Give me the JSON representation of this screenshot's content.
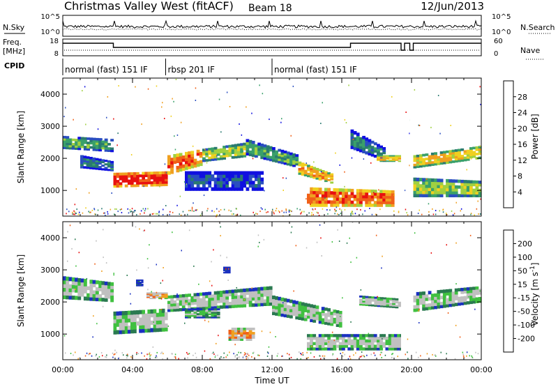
{
  "header": {
    "station": "Christmas Valley West (fitACF)",
    "beam": "Beam 18",
    "date": "12/Jun/2013"
  },
  "top_panels": {
    "nsky_label": "N.Sky",
    "nsky_ticks": [
      "10^5",
      "10^0"
    ],
    "nsearch_label": "N.Search",
    "nsearch_ticks": [
      "10^5",
      "10^0"
    ],
    "freq_label_1": "Freq.",
    "freq_label_2": "[MHz]",
    "freq_ticks": [
      "18",
      "8"
    ],
    "nave_label": "Nave",
    "nave_ticks": [
      "60",
      "0"
    ],
    "cpid_label": "CPID"
  },
  "cpid_segments": [
    {
      "label": "normal (fast) 151 IF",
      "start_hr": 0,
      "end_hr": 5.9
    },
    {
      "label": "rbsp 201 IF",
      "start_hr": 5.9,
      "end_hr": 12.0
    },
    {
      "label": "normal (fast) 151 IF",
      "start_hr": 12.0,
      "end_hr": 24
    }
  ],
  "freq_trace": [
    [
      0,
      16
    ],
    [
      2.9,
      16
    ],
    [
      2.9,
      13
    ],
    [
      5.9,
      13
    ],
    [
      12,
      13
    ],
    [
      16.5,
      13
    ],
    [
      16.5,
      16
    ],
    [
      19.4,
      16
    ],
    [
      19.4,
      11
    ],
    [
      19.6,
      11
    ],
    [
      19.6,
      16
    ],
    [
      19.9,
      16
    ],
    [
      19.9,
      11
    ],
    [
      20.1,
      11
    ],
    [
      20.1,
      16
    ],
    [
      24,
      16
    ]
  ],
  "chart_data": [
    {
      "type": "heatmap",
      "name": "power",
      "xlabel": "Time UT",
      "ylabel": "Slant Range [km]",
      "xlim": [
        0,
        24
      ],
      "ylim": [
        200,
        4500
      ],
      "x_ticks": [
        "00:00",
        "04:00",
        "08:00",
        "12:00",
        "16:00",
        "20:00",
        "00:00"
      ],
      "y_ticks": [
        1000,
        2000,
        3000,
        4000
      ],
      "colorbar_label": "Power [dB]",
      "colorbar_ticks": [
        "28",
        "24",
        "20",
        "16",
        "12",
        "8",
        "4"
      ],
      "colors": [
        "#1010e0",
        "#2a4ec0",
        "#2a7a70",
        "#3aa06a",
        "#a0d040",
        "#f0d020",
        "#f0a020",
        "#f06018",
        "#e81010"
      ],
      "bands": [
        {
          "t0": 0.0,
          "t1": 2.9,
          "r0": 2300,
          "r1": 2700,
          "r0b": 2200,
          "r1b": 2600,
          "level": 3
        },
        {
          "t0": 1.0,
          "t1": 2.9,
          "r0": 1700,
          "r1": 2100,
          "r0b": 1600,
          "r1b": 1900,
          "level": 2
        },
        {
          "t0": 2.9,
          "t1": 6.0,
          "r0": 1100,
          "r1": 1550,
          "r0b": 1150,
          "r1b": 1600,
          "level": 8
        },
        {
          "t0": 6.0,
          "t1": 8.0,
          "r0": 1500,
          "r1": 2100,
          "r0b": 1800,
          "r1b": 2300,
          "level": 7
        },
        {
          "t0": 8.0,
          "t1": 10.5,
          "r0": 1900,
          "r1": 2300,
          "r0b": 2050,
          "r1b": 2500,
          "level": 4
        },
        {
          "t0": 10.5,
          "t1": 13.5,
          "r0": 2100,
          "r1": 2600,
          "r0b": 1700,
          "r1b": 2100,
          "level": 3
        },
        {
          "t0": 13.5,
          "t1": 15.5,
          "r0": 1500,
          "r1": 1900,
          "r0b": 1200,
          "r1b": 1500,
          "level": 6
        },
        {
          "t0": 7.0,
          "t1": 11.5,
          "r0": 1000,
          "r1": 1600,
          "r0b": 1000,
          "r1b": 1600,
          "level": 1
        },
        {
          "t0": 14.0,
          "t1": 19.0,
          "r0": 500,
          "r1": 1100,
          "r0b": 500,
          "r1b": 1000,
          "level": 7
        },
        {
          "t0": 16.5,
          "t1": 18.5,
          "r0": 2300,
          "r1": 2900,
          "r0b": 1900,
          "r1b": 2300,
          "level": 2
        },
        {
          "t0": 18.0,
          "t1": 19.4,
          "r0": 1900,
          "r1": 2100,
          "r0b": 1900,
          "r1b": 2100,
          "level": 5
        },
        {
          "t0": 20.1,
          "t1": 24.0,
          "r0": 1700,
          "r1": 2100,
          "r0b": 2000,
          "r1b": 2400,
          "level": 5
        },
        {
          "t0": 20.1,
          "t1": 24.0,
          "r0": 800,
          "r1": 1400,
          "r0b": 800,
          "r1b": 1300,
          "level": 4
        }
      ]
    },
    {
      "type": "heatmap",
      "name": "velocity",
      "xlabel": "Time UT",
      "ylabel": "Slant Range [km]",
      "xlim": [
        0,
        24
      ],
      "ylim": [
        200,
        4500
      ],
      "x_ticks": [
        "00:00",
        "04:00",
        "08:00",
        "12:00",
        "16:00",
        "20:00",
        "00:00"
      ],
      "y_ticks": [
        1000,
        2000,
        3000,
        4000
      ],
      "colorbar_label_main": "Velocity [m s",
      "colorbar_label_sup": "-1",
      "colorbar_label_end": "]",
      "colorbar_ticks": [
        "200",
        "100",
        "50",
        "15",
        "-15",
        "-50",
        "-100",
        "-200"
      ],
      "colors": [
        "#1a30c0",
        "#2a7a50",
        "#40c040",
        "#c0c0c0",
        "#c0c0c0",
        "#f0a020",
        "#f06018",
        "#e81010"
      ],
      "bands": [
        {
          "t0": 0.0,
          "t1": 2.9,
          "r0": 2100,
          "r1": 2800,
          "r0b": 2000,
          "r1b": 2600,
          "level": 3
        },
        {
          "t0": 2.9,
          "t1": 6.0,
          "r0": 1000,
          "r1": 1700,
          "r0b": 1100,
          "r1b": 1800,
          "level": 3
        },
        {
          "t0": 6.0,
          "t1": 12.0,
          "r0": 1700,
          "r1": 2200,
          "r0b": 1900,
          "r1b": 2500,
          "level": 3
        },
        {
          "t0": 9.5,
          "t1": 11.0,
          "r0": 800,
          "r1": 1200,
          "r0b": 800,
          "r1b": 1200,
          "level": 5
        },
        {
          "t0": 12.0,
          "t1": 16.0,
          "r0": 1600,
          "r1": 2200,
          "r0b": 1200,
          "r1b": 1700,
          "level": 3
        },
        {
          "t0": 14.0,
          "t1": 19.5,
          "r0": 500,
          "r1": 1000,
          "r0b": 500,
          "r1b": 1000,
          "level": 3
        },
        {
          "t0": 17.0,
          "t1": 19.4,
          "r0": 1900,
          "r1": 2200,
          "r0b": 1800,
          "r1b": 2100,
          "level": 3
        },
        {
          "t0": 20.1,
          "t1": 24.0,
          "r0": 1700,
          "r1": 2300,
          "r0b": 2000,
          "r1b": 2500,
          "level": 3
        },
        {
          "t0": 4.2,
          "t1": 4.6,
          "r0": 2500,
          "r1": 2700,
          "r0b": 2500,
          "r1b": 2700,
          "level": 0
        },
        {
          "t0": 9.2,
          "t1": 9.6,
          "r0": 2900,
          "r1": 3100,
          "r0b": 2900,
          "r1b": 3100,
          "level": 0
        },
        {
          "t0": 4.8,
          "t1": 6.0,
          "r0": 2100,
          "r1": 2300,
          "r0b": 2100,
          "r1b": 2300,
          "level": 5
        },
        {
          "t0": 7.0,
          "t1": 9.0,
          "r0": 1500,
          "r1": 1800,
          "r0b": 1500,
          "r1b": 1800,
          "level": 2
        }
      ]
    }
  ]
}
